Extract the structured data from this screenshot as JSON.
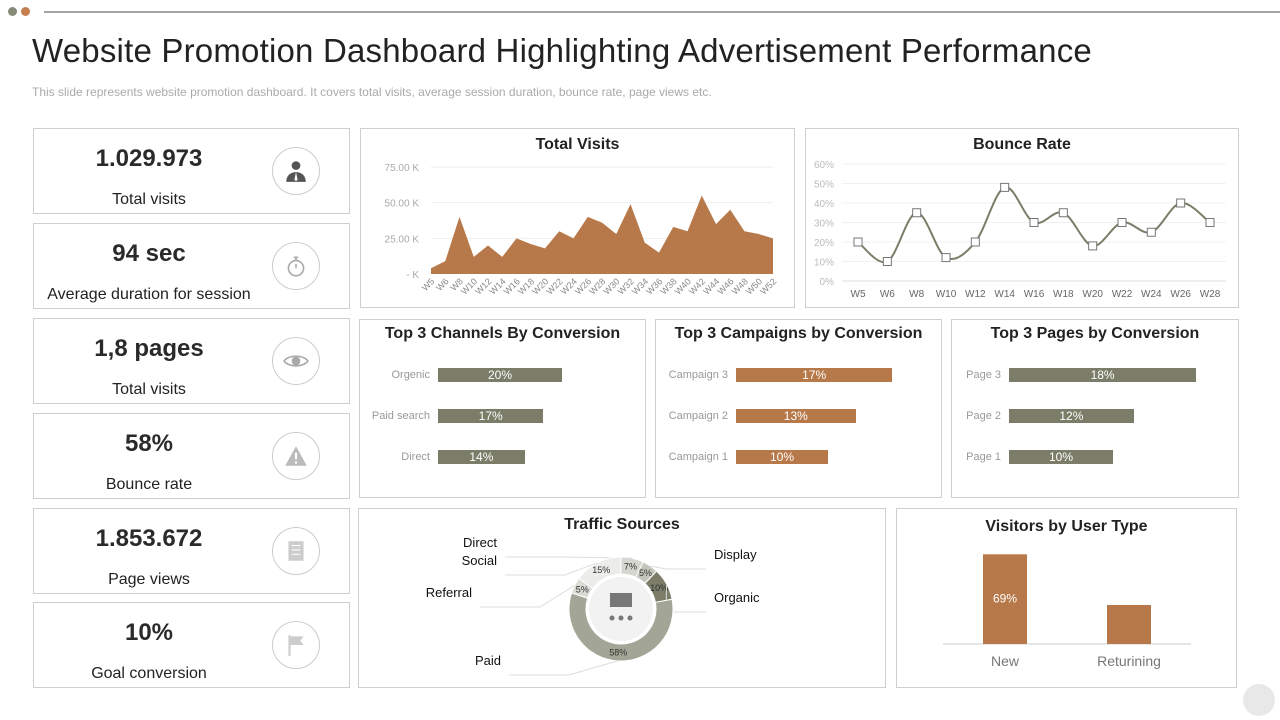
{
  "header": {
    "title": "Website Promotion Dashboard Highlighting Advertisement Performance",
    "subtitle": "This slide represents website promotion dashboard. It covers total visits, average session duration, bounce rate, page views etc."
  },
  "colors": {
    "brown": "#b8794a",
    "olive": "#7b7d68",
    "dot_gray": "#868a78",
    "dot_orange": "#c57f4f"
  },
  "kpis": [
    {
      "value": "1.029.973",
      "label": "Total visits",
      "icon": "person-icon"
    },
    {
      "value": "94 sec",
      "label": "Average duration for session",
      "icon": "stopwatch-icon"
    },
    {
      "value": "1,8 pages",
      "label": "Total visits",
      "icon": "eye-icon"
    },
    {
      "value": "58%",
      "label": "Bounce rate",
      "icon": "warning-icon"
    },
    {
      "value": "1.853.672",
      "label": "Page views",
      "icon": "book-icon"
    },
    {
      "value": "10%",
      "label": "Goal conversion",
      "icon": "flag-icon"
    }
  ],
  "chart_data": [
    {
      "id": "total_visits",
      "type": "area",
      "title": "Total Visits",
      "x": [
        "W5",
        "W6",
        "W8",
        "W10",
        "W12",
        "W14",
        "W16",
        "W18",
        "W20",
        "W22",
        "W24",
        "W26",
        "W28",
        "W30",
        "W32",
        "W34",
        "W36",
        "W38",
        "W40",
        "W42",
        "W44",
        "W46",
        "W48",
        "W50",
        "W52"
      ],
      "values": [
        4000,
        9000,
        40000,
        12000,
        20000,
        12000,
        25000,
        21000,
        18000,
        30000,
        25000,
        40000,
        36000,
        28000,
        49000,
        22000,
        15000,
        33000,
        30000,
        55000,
        35000,
        45000,
        30000,
        28000,
        25000
      ],
      "yticks": [
        "- K",
        "25.00 K",
        "50.00 K",
        "75.00 K"
      ],
      "ylim": [
        0,
        75000
      ],
      "grid": true
    },
    {
      "id": "bounce_rate",
      "type": "line",
      "title": "Bounce Rate",
      "x": [
        "W5",
        "W6",
        "W8",
        "W10",
        "W12",
        "W14",
        "W16",
        "W18",
        "W20",
        "W22",
        "W24",
        "W26",
        "W28"
      ],
      "values": [
        20,
        10,
        35,
        12,
        20,
        48,
        30,
        35,
        18,
        30,
        25,
        40,
        30
      ],
      "yticks": [
        "0%",
        "10%",
        "20%",
        "30%",
        "40%",
        "50%",
        "60%"
      ],
      "ylim": [
        0,
        60
      ],
      "grid": true,
      "marker": "square"
    },
    {
      "id": "channels",
      "type": "bar",
      "orientation": "horizontal",
      "title": "Top 3 Channels By Conversion",
      "categories": [
        "Orgenic",
        "Paid search",
        "Direct"
      ],
      "values": [
        20,
        17,
        14
      ],
      "labels": [
        "20%",
        "17%",
        "14%"
      ],
      "color": "olive"
    },
    {
      "id": "campaigns",
      "type": "bar",
      "orientation": "horizontal",
      "title": "Top 3 Campaigns by Conversion",
      "categories": [
        "Campaign 3",
        "Campaign 2",
        "Campaign 1"
      ],
      "values": [
        17,
        13,
        10
      ],
      "labels": [
        "17%",
        "13%",
        "10%"
      ],
      "color": "brown"
    },
    {
      "id": "pages",
      "type": "bar",
      "orientation": "horizontal",
      "title": "Top 3 Pages by Conversion",
      "categories": [
        "Page 3",
        "Page 2",
        "Page 1"
      ],
      "values": [
        18,
        12,
        10
      ],
      "labels": [
        "18%",
        "12%",
        "10%"
      ],
      "color": "olive"
    },
    {
      "id": "traffic",
      "type": "pie",
      "donut": true,
      "title": "Traffic Sources",
      "categories": [
        "Direct",
        "Display",
        "Organic",
        "Paid",
        "Referral",
        "Social"
      ],
      "values": [
        7,
        5,
        10,
        58,
        5,
        15
      ],
      "labels": [
        "7%",
        "5%",
        "10%",
        "58%",
        "5%",
        "15%"
      ],
      "colors": [
        "#d6d6d0",
        "#c5c6bb",
        "#7b7d68",
        "#a3a596",
        "#dcdcd6",
        "#ececea"
      ]
    },
    {
      "id": "visitors",
      "type": "bar",
      "title": "Visitors by User Type",
      "categories": [
        "New",
        "Returining"
      ],
      "values": [
        69,
        30
      ],
      "labels": [
        "69%",
        "30%"
      ],
      "color": "brown"
    }
  ]
}
